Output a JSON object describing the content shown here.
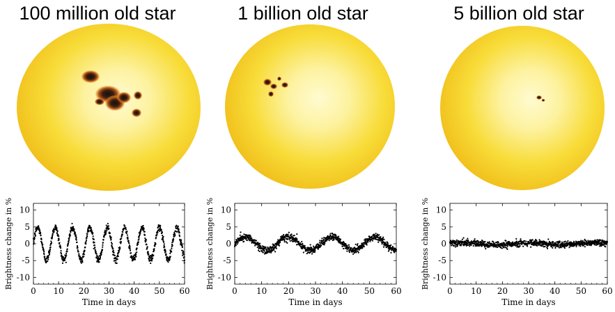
{
  "panels": [
    {
      "title": "100 million old star",
      "spot_level": "many large spots"
    },
    {
      "title": "1 billion old star",
      "spot_level": "few spots"
    },
    {
      "title": "5 billion old star",
      "spot_level": "tiny spot"
    }
  ],
  "colors": {
    "star_outer": "#f2c21a",
    "star_mid": "#f8dc38",
    "star_inner": "#fdf2a0",
    "spot_dark": "#2a1a10",
    "spot_penumbra": "#c8621a",
    "points": "#000000",
    "axis": "#000000"
  },
  "chart_data": [
    {
      "type": "scatter",
      "title": "100 million old star",
      "xlabel": "Time in days",
      "ylabel": "Brightness change in %",
      "xlim": [
        0,
        60
      ],
      "ylim": [
        -12,
        12
      ],
      "xticks": [
        "0",
        "10",
        "20",
        "30",
        "40",
        "50",
        "60"
      ],
      "yticks": [
        "10",
        "5",
        "0",
        "-5",
        "-10"
      ],
      "model": {
        "amplitude": 4.8,
        "period_days": 6.9,
        "noise": 0.9,
        "n_points": 900
      }
    },
    {
      "type": "scatter",
      "title": "1 billion old star",
      "xlabel": "Time in days",
      "ylabel": "Brightness change in %",
      "xlim": [
        0,
        60
      ],
      "ylim": [
        -12,
        12
      ],
      "xticks": [
        "0",
        "10",
        "20",
        "30",
        "40",
        "50",
        "60"
      ],
      "yticks": [
        "10",
        "5",
        "0",
        "-5",
        "-10"
      ],
      "model": {
        "amplitude": 2.0,
        "period_days": 16.0,
        "noise": 0.9,
        "n_points": 900
      }
    },
    {
      "type": "scatter",
      "title": "5 billion old star",
      "xlabel": "Time in days",
      "ylabel": "Brightness change in %",
      "xlim": [
        0,
        60
      ],
      "ylim": [
        -12,
        12
      ],
      "xticks": [
        "0",
        "10",
        "20",
        "30",
        "40",
        "50",
        "60"
      ],
      "yticks": [
        "10",
        "5",
        "0",
        "-5",
        "-10"
      ],
      "model": {
        "amplitude": 0.3,
        "period_days": 25.0,
        "noise": 0.8,
        "n_points": 900
      }
    }
  ]
}
